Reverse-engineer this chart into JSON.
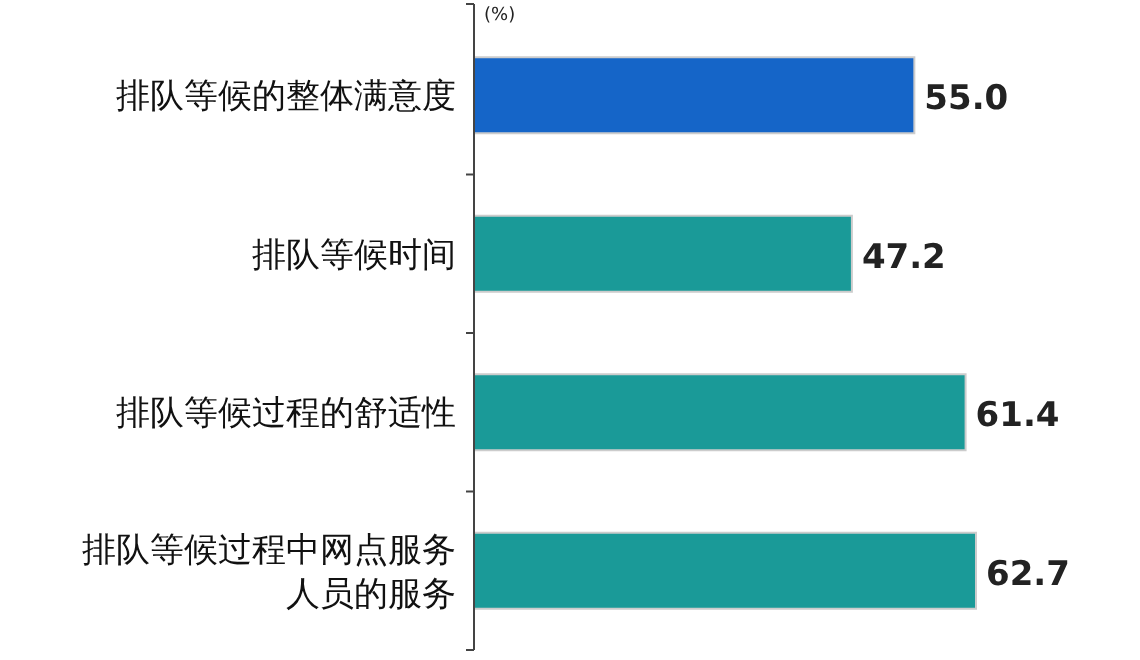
{
  "chart_data": {
    "type": "bar",
    "orientation": "horizontal",
    "xlabel": "(%)",
    "categories": [
      "排队等候的整体满意度",
      "排队等候时间",
      "排队等候过程的舒适性",
      "排队等候过程中网点服务人员的服务"
    ],
    "values": [
      55.0,
      47.2,
      61.4,
      62.7
    ],
    "value_labels": [
      "55.0",
      "47.2",
      "61.4",
      "62.7"
    ],
    "colors": [
      "#1565c8",
      "#1a9a98",
      "#1a9a98",
      "#1a9a98"
    ]
  }
}
